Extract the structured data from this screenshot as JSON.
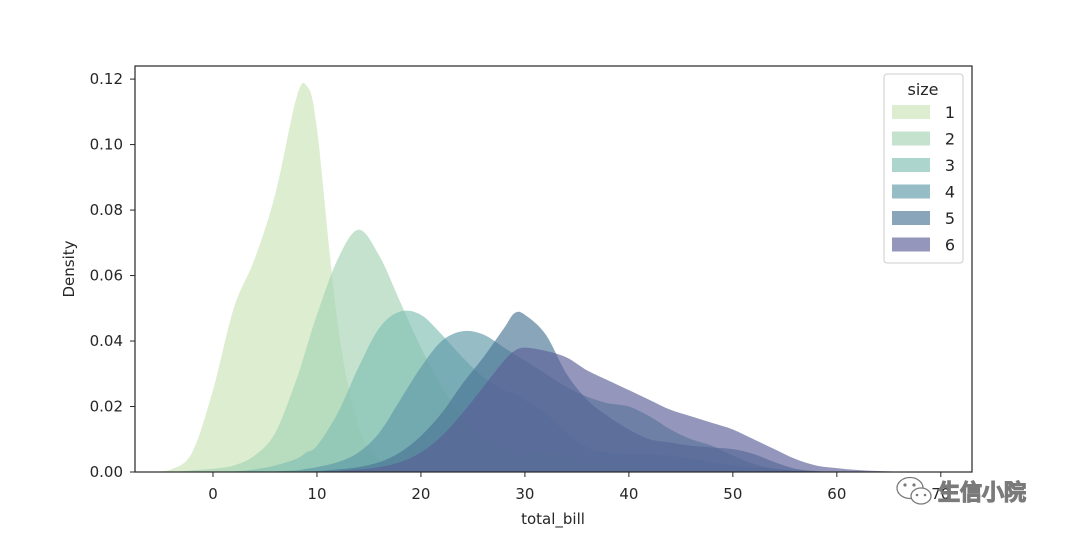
{
  "chart_data": {
    "type": "area",
    "title": "",
    "xlabel": "total_bill",
    "ylabel": "Density",
    "xlim": [
      -7.5,
      73
    ],
    "ylim": [
      0,
      0.124
    ],
    "xticks": [
      "0",
      "10",
      "20",
      "30",
      "40",
      "50",
      "60",
      "70"
    ],
    "yticks": [
      "0.00",
      "0.02",
      "0.04",
      "0.06",
      "0.08",
      "0.10",
      "0.12"
    ],
    "grid": false,
    "legend": {
      "title": "size",
      "placement": "upper right"
    },
    "x": [
      -6,
      -4,
      -2,
      0,
      2,
      4,
      6,
      8,
      9,
      10,
      12,
      14,
      16,
      18,
      20,
      22,
      24,
      26,
      28,
      29,
      30,
      32,
      34,
      36,
      38,
      40,
      42,
      44,
      46,
      48,
      50,
      52,
      54,
      56,
      58,
      60,
      62,
      64,
      66,
      68
    ],
    "series": [
      {
        "name": "1",
        "color": "#c9e3b7",
        "values": [
          0.0,
          0.0008,
          0.006,
          0.025,
          0.05,
          0.065,
          0.085,
          0.114,
          0.118,
          0.105,
          0.045,
          0.014,
          0.004,
          0.001,
          0.0003,
          0.0,
          0.0,
          0.0,
          0.0,
          0.0,
          0.0,
          0.0,
          0.0,
          0.0,
          0.0,
          0.0,
          0.0,
          0.0,
          0.0,
          0.0,
          0.0,
          0.0,
          0.0,
          0.0,
          0.0,
          0.0,
          0.0,
          0.0,
          0.0,
          0.0
        ]
      },
      {
        "name": "2",
        "color": "#a4d3b4",
        "values": [
          0.0,
          0.0,
          0.0005,
          0.001,
          0.002,
          0.005,
          0.012,
          0.028,
          0.038,
          0.048,
          0.065,
          0.074,
          0.066,
          0.052,
          0.038,
          0.026,
          0.017,
          0.011,
          0.008,
          0.007,
          0.0065,
          0.006,
          0.005,
          0.004,
          0.0025,
          0.0015,
          0.001,
          0.0006,
          0.0003,
          0.0001,
          0.0,
          0.0,
          0.0,
          0.0,
          0.0,
          0.0,
          0.0,
          0.0,
          0.0,
          0.0
        ]
      },
      {
        "name": "3",
        "color": "#7fbfb2",
        "values": [
          0.0,
          0.0,
          0.0,
          0.0,
          0.0002,
          0.0008,
          0.002,
          0.004,
          0.006,
          0.008,
          0.018,
          0.032,
          0.044,
          0.049,
          0.048,
          0.042,
          0.035,
          0.029,
          0.025,
          0.024,
          0.022,
          0.018,
          0.012,
          0.0075,
          0.006,
          0.0055,
          0.0055,
          0.005,
          0.004,
          0.003,
          0.002,
          0.0015,
          0.001,
          0.0005,
          0.0002,
          0.0,
          0.0,
          0.0,
          0.0,
          0.0
        ]
      },
      {
        "name": "4",
        "color": "#5e98a7",
        "values": [
          0.0,
          0.0,
          0.0,
          0.0,
          0.0,
          0.0,
          0.0002,
          0.0005,
          0.001,
          0.0015,
          0.003,
          0.006,
          0.012,
          0.022,
          0.032,
          0.04,
          0.043,
          0.042,
          0.038,
          0.036,
          0.034,
          0.03,
          0.026,
          0.023,
          0.021,
          0.02,
          0.017,
          0.013,
          0.01,
          0.008,
          0.005,
          0.0025,
          0.001,
          0.0005,
          0.0002,
          0.0,
          0.0,
          0.0,
          0.0,
          0.0
        ]
      },
      {
        "name": "5",
        "color": "#4a7595",
        "values": [
          0.0,
          0.0,
          0.0,
          0.0,
          0.0,
          0.0,
          0.0,
          0.0001,
          0.0002,
          0.0003,
          0.0008,
          0.0015,
          0.003,
          0.006,
          0.011,
          0.018,
          0.027,
          0.035,
          0.044,
          0.0485,
          0.048,
          0.042,
          0.03,
          0.022,
          0.017,
          0.013,
          0.01,
          0.009,
          0.008,
          0.0075,
          0.007,
          0.0055,
          0.003,
          0.001,
          0.0003,
          0.0,
          0.0,
          0.0,
          0.0,
          0.0
        ]
      },
      {
        "name": "6",
        "color": "#5b5f96",
        "values": [
          0.0,
          0.0,
          0.0,
          0.0,
          0.0,
          0.0,
          0.0,
          0.0,
          0.0001,
          0.0001,
          0.0003,
          0.0008,
          0.0015,
          0.003,
          0.006,
          0.011,
          0.018,
          0.026,
          0.034,
          0.037,
          0.038,
          0.037,
          0.035,
          0.031,
          0.028,
          0.025,
          0.022,
          0.019,
          0.017,
          0.015,
          0.013,
          0.01,
          0.007,
          0.004,
          0.002,
          0.0012,
          0.0006,
          0.0003,
          0.0001,
          0.0
        ]
      }
    ]
  },
  "series_opacity": 0.65,
  "colors": {
    "axis": "#262626",
    "background": "#ffffff",
    "text": "#262626"
  },
  "watermark": {
    "icon": "wechat-icon",
    "text": "生信小院"
  }
}
